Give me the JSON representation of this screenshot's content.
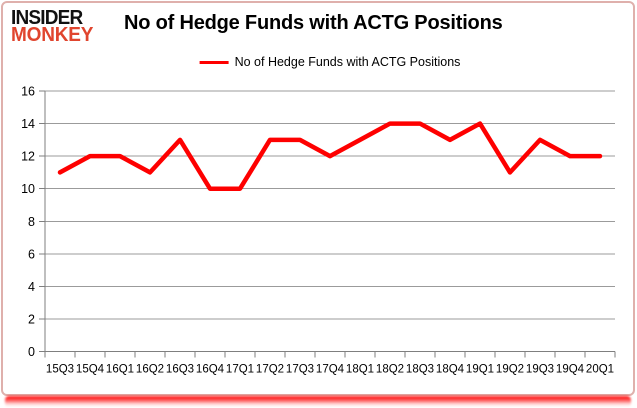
{
  "header": {
    "logo_line1": "INSIDER",
    "logo_line2": "MONKEY",
    "title": "No of Hedge Funds with ACTG Positions"
  },
  "legend": {
    "label": "No of Hedge Funds with ACTG Positions"
  },
  "colors": {
    "series_red": "#fe0000",
    "logo_red": "#e0452e",
    "gridline_gray": "#9b9b9b",
    "axis_gray": "#7f7f7f",
    "border_pink": "#dfb0ac"
  },
  "chart_data": {
    "type": "line",
    "title": "No of Hedge Funds with ACTG Positions",
    "categories": [
      "15Q3",
      "15Q4",
      "16Q1",
      "16Q2",
      "16Q3",
      "16Q4",
      "17Q1",
      "17Q2",
      "17Q3",
      "17Q4",
      "18Q1",
      "18Q2",
      "18Q3",
      "18Q4",
      "19Q1",
      "19Q2",
      "19Q3",
      "19Q4",
      "20Q1"
    ],
    "series": [
      {
        "name": "No of Hedge Funds with ACTG Positions",
        "color": "#fe0000",
        "values": [
          11,
          12,
          12,
          11,
          13,
          10,
          10,
          13,
          13,
          12,
          13,
          14,
          14,
          13,
          14,
          11,
          13,
          12,
          12
        ]
      }
    ],
    "xlabel": "",
    "ylabel": "",
    "ylim": [
      0,
      16
    ],
    "ytick_step": 2,
    "grid": "horizontal",
    "legend_position": "top-center"
  }
}
